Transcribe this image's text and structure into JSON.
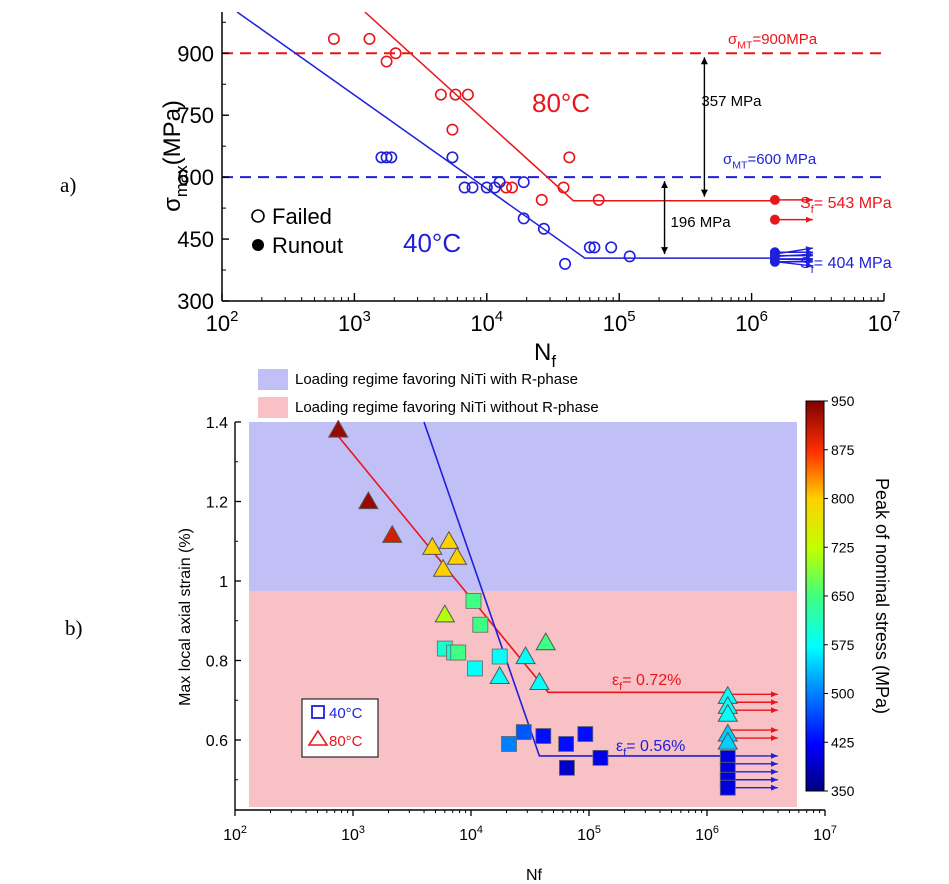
{
  "chart_data": [
    {
      "id": "a",
      "type": "scatter",
      "panel_label": "a)",
      "x_scale": "log",
      "xlim": [
        100,
        10000000
      ],
      "ylim": [
        300,
        1000
      ],
      "x_tick_labels": [
        {
          "base": "10",
          "exp": "2"
        },
        {
          "base": "10",
          "exp": "3"
        },
        {
          "base": "10",
          "exp": "4"
        },
        {
          "base": "10",
          "exp": "5"
        },
        {
          "base": "10",
          "exp": "6"
        },
        {
          "base": "10",
          "exp": "7"
        }
      ],
      "y_ticks": [
        300,
        450,
        600,
        750,
        900
      ],
      "y_tick_labels": [
        "300",
        "450",
        "600",
        "750",
        "900"
      ],
      "xlabel": {
        "main": "N",
        "sub": "f"
      },
      "ylabel": {
        "main": "σ",
        "sub": "max",
        "rest": "(MPa)"
      },
      "legend": {
        "failed": "Failed",
        "runout": "Runout",
        "position": "left"
      },
      "colors": {
        "red": "#e8161b",
        "blue": "#1f1fdc",
        "black": "#000000"
      },
      "series": [
        {
          "name": "80°C",
          "color": "#e8161b",
          "failed": [
            [
              700,
              935
            ],
            [
              1300,
              935
            ],
            [
              1750,
              880
            ],
            [
              2050,
              900
            ],
            [
              4500,
              800
            ],
            [
              5800,
              800
            ],
            [
              7200,
              800
            ],
            [
              5500,
              715
            ],
            [
              14000,
              575
            ],
            [
              15500,
              575
            ],
            [
              26000,
              545
            ],
            [
              38000,
              575
            ],
            [
              42000,
              648
            ],
            [
              70000,
              545
            ]
          ],
          "runout": [
            [
              1500000,
              545
            ],
            [
              1500000,
              497
            ]
          ],
          "fit": [
            [
              1200,
              1000
            ],
            [
              45000,
              543
            ],
            [
              1500000,
              543
            ]
          ]
        },
        {
          "name": "40°C",
          "color": "#1f1fdc",
          "failed": [
            [
              1600,
              648
            ],
            [
              1750,
              648
            ],
            [
              1900,
              648
            ],
            [
              5500,
              648
            ],
            [
              6800,
              575
            ],
            [
              7800,
              575
            ],
            [
              10000,
              575
            ],
            [
              11500,
              575
            ],
            [
              12500,
              588
            ],
            [
              19000,
              588
            ],
            [
              19000,
              500
            ],
            [
              27000,
              475
            ],
            [
              39000,
              390
            ],
            [
              60000,
              430
            ],
            [
              65000,
              430
            ],
            [
              87000,
              430
            ],
            [
              120000,
              408
            ]
          ],
          "runout": [
            [
              1500000,
              418
            ],
            [
              1500000,
              410
            ],
            [
              1500000,
              402
            ],
            [
              1500000,
              395
            ]
          ],
          "fit": [
            [
              130,
              1000
            ],
            [
              55000,
              404
            ],
            [
              1500000,
              404
            ]
          ]
        }
      ],
      "hlines": [
        {
          "y": 900,
          "color": "#e8161b",
          "label_main": "σ",
          "label_sub": "MT",
          "label_rest": "=900MPa"
        },
        {
          "y": 600,
          "color": "#1f1fdc",
          "label_main": "σ",
          "label_sub": "MT",
          "label_rest": "=600 MPa"
        }
      ],
      "annotations": [
        {
          "text": "357 MPa",
          "x_from": 440000,
          "y_from": 900,
          "y_to": 543
        },
        {
          "text": "196 MPa",
          "x_from": 220000,
          "y_from": 600,
          "y_to": 404
        },
        {
          "label_main": "S",
          "label_sub": "f",
          "label_rest": "= 543 MPa",
          "color": "#e8161b"
        },
        {
          "label_main": "S",
          "label_sub": "f",
          "label_rest": "=  404 MPa",
          "color": "#1f1fdc"
        }
      ]
    },
    {
      "id": "b",
      "type": "scatter",
      "panel_label": "b)",
      "x_scale": "log",
      "xlim": [
        100,
        10000000
      ],
      "ylim": [
        0.4,
        1.4
      ],
      "x_tick_labels": [
        {
          "base": "10",
          "exp": "2"
        },
        {
          "base": "10",
          "exp": "3"
        },
        {
          "base": "10",
          "exp": "4"
        },
        {
          "base": "10",
          "exp": "5"
        },
        {
          "base": "10",
          "exp": "6"
        },
        {
          "base": "10",
          "exp": "7"
        }
      ],
      "y_ticks": [
        0.6,
        0.8,
        1.0,
        1.2,
        1.4
      ],
      "y_tick_labels": [
        "0.6",
        "0.8",
        "1",
        "1.2",
        "1.4"
      ],
      "xlabel": "Nf",
      "ylabel": "Max local axial strain (%)",
      "colorbar": {
        "label": "Peak of nominal stress (MPa)",
        "ticks": [
          350,
          425,
          500,
          575,
          650,
          725,
          800,
          875,
          950
        ]
      },
      "regions": [
        {
          "label": "Loading regime favoring NiTi with R-phase",
          "color": "#c0c0f6",
          "y_range": [
            0.975,
            1.4
          ]
        },
        {
          "label": "Loading regime favoring NiTi without R-phase",
          "color": "#f7c1c6",
          "y_range": [
            0.43,
            0.975
          ]
        }
      ],
      "legend": {
        "items": [
          "40°C",
          "80°C"
        ],
        "position": "lower-left"
      },
      "series": [
        {
          "name": "80°C",
          "marker": "triangle",
          "points": [
            [
              750,
              1.38,
              935
            ],
            [
              1350,
              1.2,
              935
            ],
            [
              2150,
              1.115,
              900
            ],
            [
              4700,
              1.085,
              800
            ],
            [
              5800,
              1.03,
              800
            ],
            [
              6500,
              1.1,
              800
            ],
            [
              7600,
              1.06,
              800
            ],
            [
              6000,
              0.915,
              715
            ],
            [
              17500,
              0.76,
              575
            ],
            [
              29000,
              0.81,
              575
            ],
            [
              38000,
              0.745,
              575
            ],
            [
              43000,
              0.845,
              648
            ],
            [
              1500000,
              0.71,
              575
            ],
            [
              1500000,
              0.685,
              575
            ],
            [
              1500000,
              0.665,
              575
            ],
            [
              1500000,
              0.615,
              545
            ],
            [
              1500000,
              0.595,
              545
            ]
          ],
          "fit": [
            [
              700,
              1.375
            ],
            [
              45000,
              0.72
            ],
            [
              1500000,
              0.72
            ]
          ]
        },
        {
          "name": "40°C",
          "marker": "square",
          "points": [
            [
              6000,
              0.83,
              600
            ],
            [
              7200,
              0.82,
              600
            ],
            [
              7800,
              0.82,
              648
            ],
            [
              10500,
              0.95,
              648
            ],
            [
              10800,
              0.78,
              575
            ],
            [
              12000,
              0.89,
              648
            ],
            [
              17500,
              0.81,
              575
            ],
            [
              21000,
              0.59,
              500
            ],
            [
              28000,
              0.62,
              475
            ],
            [
              41000,
              0.61,
              430
            ],
            [
              64000,
              0.59,
              430
            ],
            [
              65000,
              0.53,
              390
            ],
            [
              93000,
              0.615,
              430
            ],
            [
              125000,
              0.555,
              408
            ],
            [
              1500000,
              0.555,
              404
            ],
            [
              1500000,
              0.525,
              404
            ],
            [
              1500000,
              0.5,
              404
            ],
            [
              1500000,
              0.48,
              404
            ]
          ],
          "fit": [
            [
              4000,
              1.4
            ],
            [
              38000,
              0.56
            ],
            [
              1500000,
              0.56
            ]
          ]
        }
      ],
      "annotations": [
        {
          "label_main": "ε",
          "label_sub": "f",
          "label_rest": "=  0.72%",
          "color": "#e8161b"
        },
        {
          "label_main": "ε",
          "label_sub": "f",
          "label_rest": "=  0.56%",
          "color": "#1f1fdc"
        }
      ]
    }
  ],
  "figure_text": {
    "a_label_80": "80°C",
    "a_label_40": "40°C"
  }
}
